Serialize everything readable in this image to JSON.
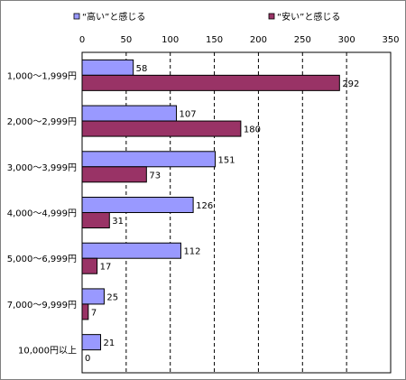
{
  "chart_data": {
    "type": "bar",
    "orientation": "horizontal",
    "categories": [
      "1,000～1,999円",
      "2,000～2,999円",
      "3,000～3,999円",
      "4,000～4,999円",
      "5,000～6,999円",
      "7,000～9,999円",
      "10,000円以上"
    ],
    "series": [
      {
        "name": "“高い”と感じる",
        "values": [
          58,
          107,
          151,
          126,
          112,
          25,
          21
        ],
        "color": "#9999ff"
      },
      {
        "name": "“安い”と感じる",
        "values": [
          292,
          180,
          73,
          31,
          17,
          7,
          0
        ],
        "color": "#993366"
      }
    ],
    "xlim": [
      0,
      350
    ],
    "xticks": [
      0,
      50,
      100,
      150,
      200,
      250,
      300,
      350
    ],
    "grid": "vertical dashed",
    "legend_position": "top",
    "title": "",
    "xlabel": "",
    "ylabel": ""
  }
}
